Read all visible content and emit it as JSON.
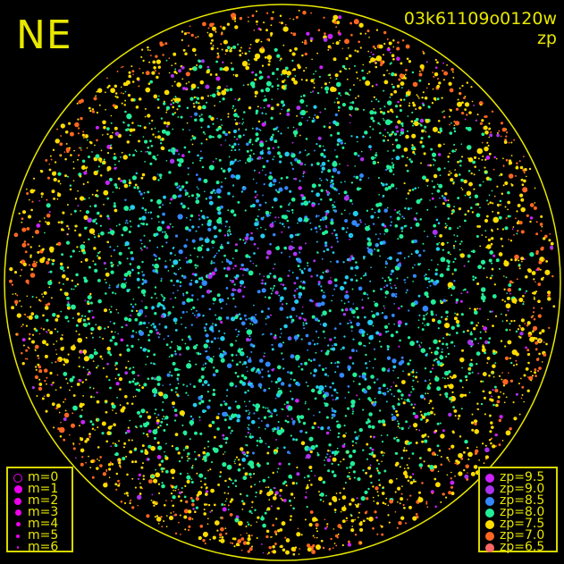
{
  "chart_data": {
    "type": "scatter",
    "direction_label": "NE",
    "title": "03k61109o0120w",
    "subtitle": "zp",
    "grid": false,
    "horizon_circle_color": "#e8e800",
    "size_legend": {
      "placement": "bottom-left",
      "entries": [
        {
          "label": "m=0",
          "style": "open"
        },
        {
          "label": "m=1",
          "style": "filled"
        },
        {
          "label": "m=2",
          "style": "filled"
        },
        {
          "label": "m=3",
          "style": "filled"
        },
        {
          "label": "m=4",
          "style": "filled"
        },
        {
          "label": "m=5",
          "style": "filled"
        },
        {
          "label": "m=6",
          "style": "filled"
        }
      ],
      "color": "#ee00ee"
    },
    "color_legend": {
      "placement": "bottom-right",
      "entries": [
        {
          "label": "zp=9.5",
          "color": "#cc22ff"
        },
        {
          "label": "zp=9.0",
          "color": "#aa33ee"
        },
        {
          "label": "zp=8.5",
          "color": "#3388ff"
        },
        {
          "label": "zp=8.0",
          "color": "#22ee99"
        },
        {
          "label": "zp=7.5",
          "color": "#ffdd00"
        },
        {
          "label": "zp=7.0",
          "color": "#ff6622"
        },
        {
          "label": "zp=6.5",
          "color": "#ff6666"
        }
      ]
    }
  }
}
